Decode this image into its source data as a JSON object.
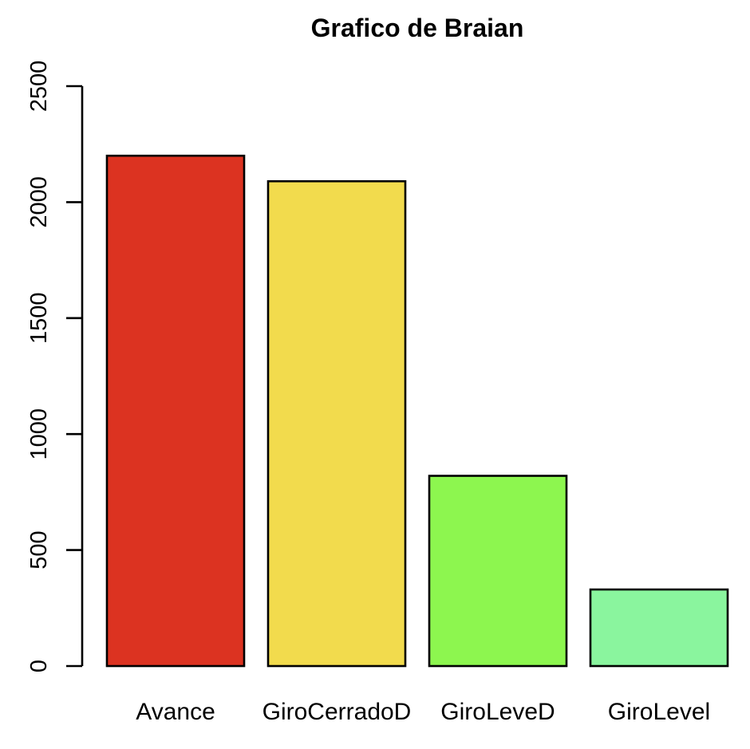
{
  "chart_data": {
    "type": "bar",
    "title": "Grafico de Braian",
    "categories": [
      "Avance",
      "GiroCerradoD",
      "GiroLeveD",
      "GiroLevel"
    ],
    "values": [
      2200,
      2090,
      820,
      330
    ],
    "bar_colors": [
      "#DC3321",
      "#F2DB4D",
      "#8DF64F",
      "#8AF59E"
    ],
    "bar_border_color": "#000000",
    "xlabel": "",
    "ylabel": "",
    "ylim": [
      0,
      2500
    ],
    "yticks": [
      0,
      500,
      1000,
      1500,
      2000,
      2500
    ],
    "grid": false,
    "legend": "none",
    "background_color": "#FFFFFF",
    "text_color": "#000000",
    "title_bold": true,
    "y_tick_labels_rotated": true
  }
}
